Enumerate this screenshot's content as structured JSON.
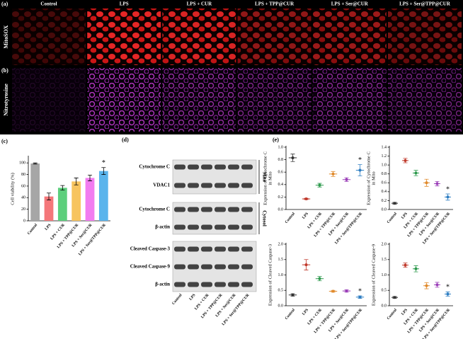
{
  "panel_labels": [
    "(a)",
    "(b)",
    "(c)",
    "(d)",
    "(e)"
  ],
  "column_headers": [
    "Control",
    "LPS",
    "LPS + CUR",
    "LPS + TPP@CUR",
    "LPS + Ser@CUR",
    "LPS + Ser@TPP@CUR"
  ],
  "row_labels": [
    "MitoSOX",
    "Nitrotyrosine"
  ],
  "blot": {
    "rows": [
      "Cytochrome C",
      "VDAC1",
      "Cytochrome C",
      "β-actin",
      "Cleaved Caspase-3",
      "Cleaved Caspase-9",
      "β-actin"
    ],
    "groups": [
      "Mito",
      "Cytosol"
    ],
    "categories": [
      "Control",
      "LPS",
      "LPS + CUR",
      "LPS + TPP@CUR",
      "LPS + Ser@CUR",
      "LPS + Ser@TPP@CUR"
    ]
  },
  "chart_data": [
    {
      "type": "bar",
      "ylabel": [
        "Cell viability (%)"
      ],
      "categories": [
        "Control",
        "LPS",
        "LPS + CUR",
        "LPS + TPP@CUR",
        "LPS + Ser@CUR",
        "LPS + Ser@TPP@CUR"
      ],
      "values": [
        99,
        42,
        57,
        68,
        74,
        86
      ],
      "errors": [
        1,
        6,
        4,
        6,
        5,
        6
      ],
      "colors": [
        "#a6a6a6",
        "#f4777a",
        "#5ccf7c",
        "#f7c45f",
        "#f27cf0",
        "#5ab4ec"
      ],
      "ylim": [
        0,
        110
      ],
      "yticks": [
        0,
        20,
        40,
        60,
        80,
        100
      ],
      "annotation": "*"
    },
    {
      "type": "dot",
      "ylabel": [
        "Expression of Cytochrome C",
        "in Mito"
      ],
      "categories": [
        "Control",
        "LPS",
        "LPS + CUR",
        "LPS + TPP@CUR",
        "LPS + Ser@CUR",
        "LPS + Ser@TPP@CUR"
      ],
      "values": [
        0.83,
        0.17,
        0.39,
        0.57,
        0.48,
        0.63
      ],
      "errors": [
        0.06,
        0.01,
        0.03,
        0.04,
        0.03,
        0.09
      ],
      "colors": [
        "#333333",
        "#c0392b",
        "#2e9a4e",
        "#e08a2c",
        "#9b3fb8",
        "#2e7ec2"
      ],
      "ylim": [
        0,
        1.0
      ],
      "yticks": [
        {
          "value": 0,
          "label": "0.0"
        },
        0.2,
        0.4,
        0.6,
        0.8,
        {
          "value": 1,
          "label": "1.0"
        }
      ],
      "annotation": "*"
    },
    {
      "type": "dot",
      "ylabel": [
        "Expression of Cytochrome C",
        "in Mito"
      ],
      "categories": [
        "Control",
        "LPS",
        "LPS + CUR",
        "LPS + TPP@CUR",
        "LPS + Ser@CUR",
        "LPS + Ser@TPP@CUR"
      ],
      "values": [
        0.14,
        1.1,
        0.82,
        0.6,
        0.58,
        0.28
      ],
      "errors": [
        0.02,
        0.05,
        0.06,
        0.08,
        0.05,
        0.07
      ],
      "colors": [
        "#333333",
        "#c0392b",
        "#2e9a4e",
        "#e08a2c",
        "#9b3fb8",
        "#2e7ec2"
      ],
      "ylim": [
        0,
        1.4
      ],
      "yticks": [
        {
          "value": 0,
          "label": "0.0"
        },
        0.2,
        0.4,
        0.6,
        0.8,
        {
          "value": 1,
          "label": "1.0"
        },
        1.2,
        1.4
      ],
      "annotation": "*"
    },
    {
      "type": "dot",
      "ylabel": [
        "Expression of Cleaved Caspase-3"
      ],
      "categories": [
        "Control",
        "LPS",
        "LPS + CUR",
        "LPS + TPP@CUR",
        "LPS + Ser@CUR",
        "LPS + Ser@TPP@CUR"
      ],
      "values": [
        0.35,
        1.33,
        0.88,
        0.47,
        0.48,
        0.28
      ],
      "errors": [
        0.04,
        0.17,
        0.07,
        0.03,
        0.04,
        0.04
      ],
      "colors": [
        "#333333",
        "#c0392b",
        "#2e9a4e",
        "#e08a2c",
        "#9b3fb8",
        "#2e7ec2"
      ],
      "ylim": [
        0,
        2.0
      ],
      "yticks": [
        {
          "value": 0,
          "label": "0.0"
        },
        0.5,
        {
          "value": 1,
          "label": "1.0"
        },
        1.5,
        {
          "value": 2,
          "label": "2.0"
        }
      ],
      "annotation": "*"
    },
    {
      "type": "dot",
      "ylabel": [
        "Expression of Cleaved Caspase-9"
      ],
      "categories": [
        "Control",
        "LPS",
        "LPS + CUR",
        "LPS + TPP@CUR",
        "LPS + Ser@CUR",
        "LPS + Ser@TPP@CUR"
      ],
      "values": [
        0.27,
        1.32,
        1.2,
        0.65,
        0.68,
        0.38
      ],
      "errors": [
        0.03,
        0.07,
        0.1,
        0.1,
        0.08,
        0.07
      ],
      "colors": [
        "#333333",
        "#c0392b",
        "#2e9a4e",
        "#e08a2c",
        "#9b3fb8",
        "#2e7ec2"
      ],
      "ylim": [
        0,
        2.0
      ],
      "yticks": [
        {
          "value": 0,
          "label": "0.0"
        },
        0.5,
        {
          "value": 1,
          "label": "1.0"
        },
        1.5,
        {
          "value": 2,
          "label": "2.0"
        }
      ],
      "annotation": "*"
    }
  ]
}
